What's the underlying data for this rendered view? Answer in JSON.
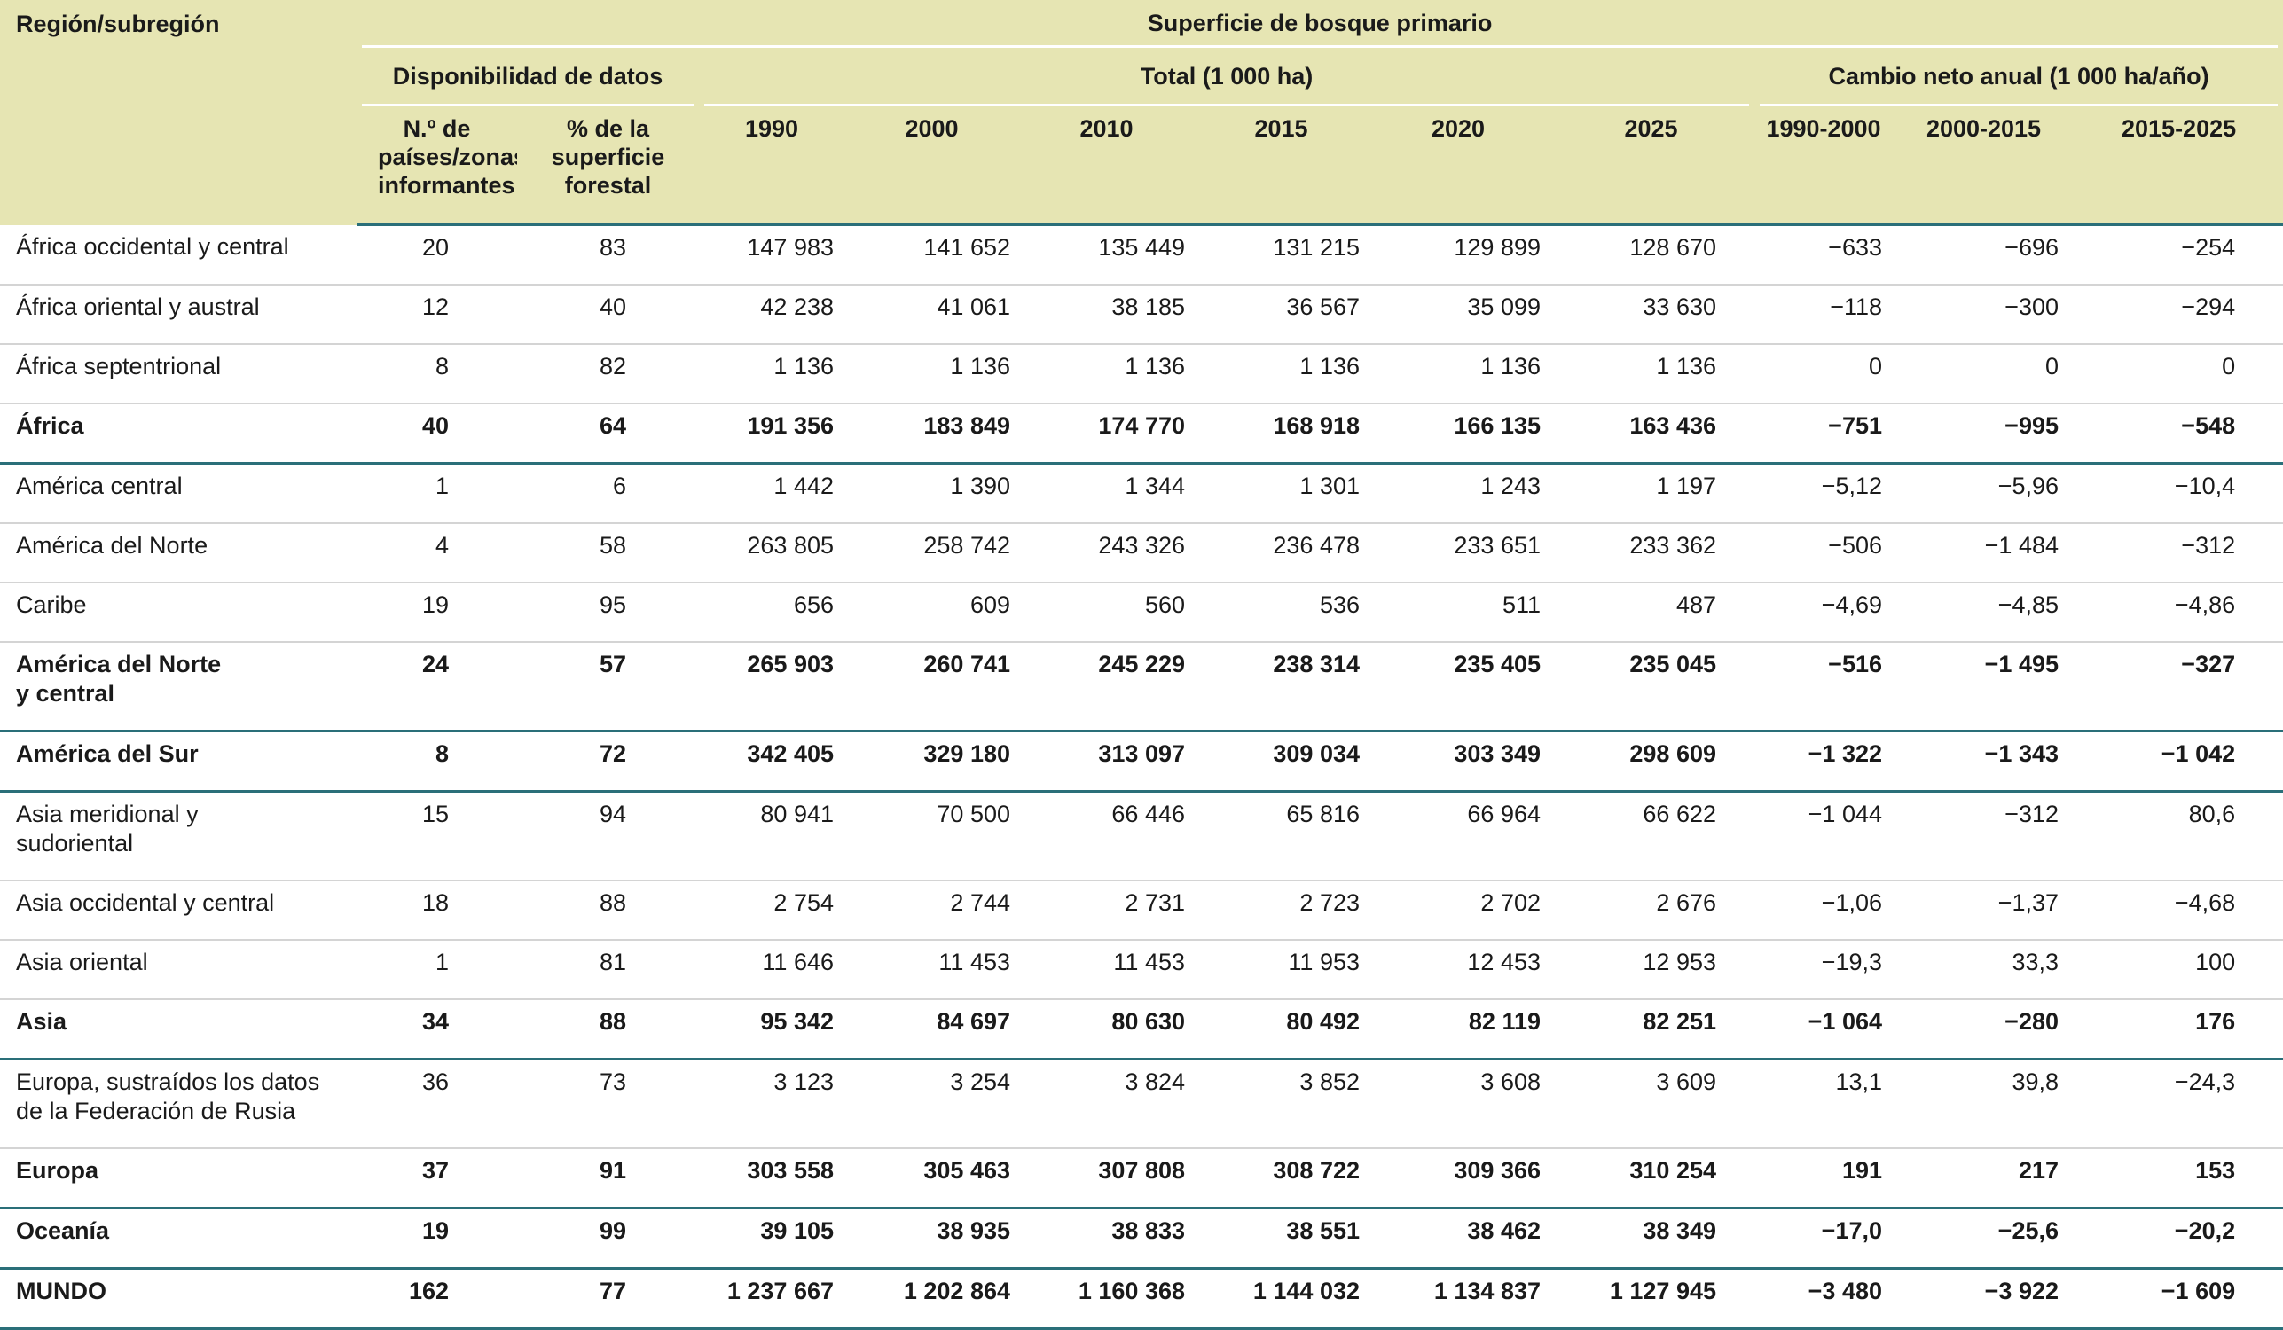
{
  "header": {
    "region": "Región/subregión",
    "title": "Superficie de bosque primario",
    "groups": [
      "Disponibilidad de datos",
      "Total (1 000 ha)",
      "Cambio neto anual (1 000 ha/año)"
    ],
    "columns": [
      "N.º de países/zonas informantes",
      "% de la superficie forestal",
      "1990",
      "2000",
      "2010",
      "2015",
      "2020",
      "2025",
      "1990-2000",
      "2000-2015",
      "2015-2025"
    ]
  },
  "rows": [
    {
      "label": "África occidental y central",
      "bold": false,
      "values": [
        "20",
        "83",
        "147 983",
        "141 652",
        "135 449",
        "131 215",
        "129 899",
        "128 670",
        "−633",
        "−696",
        "−254"
      ]
    },
    {
      "label": "África oriental y austral",
      "bold": false,
      "values": [
        "12",
        "40",
        "42 238",
        "41 061",
        "38 185",
        "36 567",
        "35 099",
        "33 630",
        "−118",
        "−300",
        "−294"
      ]
    },
    {
      "label": "África septentrional",
      "bold": false,
      "values": [
        "8",
        "82",
        "1 136",
        "1 136",
        "1 136",
        "1 136",
        "1 136",
        "1 136",
        "0",
        "0",
        "0"
      ]
    },
    {
      "label": "África",
      "bold": true,
      "values": [
        "40",
        "64",
        "191 356",
        "183 849",
        "174 770",
        "168 918",
        "166 135",
        "163 436",
        "−751",
        "−995",
        "−548"
      ]
    },
    {
      "label": "América central",
      "bold": false,
      "values": [
        "1",
        "6",
        "1 442",
        "1 390",
        "1 344",
        "1 301",
        "1 243",
        "1 197",
        "−5,12",
        "−5,96",
        "−10,4"
      ]
    },
    {
      "label": "América del Norte",
      "bold": false,
      "values": [
        "4",
        "58",
        "263 805",
        "258 742",
        "243 326",
        "236 478",
        "233 651",
        "233 362",
        "−506",
        "−1 484",
        "−312"
      ]
    },
    {
      "label": "Caribe",
      "bold": false,
      "values": [
        "19",
        "95",
        "656",
        "609",
        "560",
        "536",
        "511",
        "487",
        "−4,69",
        "−4,85",
        "−4,86"
      ]
    },
    {
      "label": "América del Norte\ny central",
      "bold": true,
      "values": [
        "24",
        "57",
        "265 903",
        "260 741",
        "245 229",
        "238 314",
        "235 405",
        "235 045",
        "−516",
        "−1 495",
        "−327"
      ]
    },
    {
      "label": "América del Sur",
      "bold": true,
      "values": [
        "8",
        "72",
        "342 405",
        "329 180",
        "313 097",
        "309 034",
        "303 349",
        "298 609",
        "−1 322",
        "−1 343",
        "−1 042"
      ]
    },
    {
      "label": "Asia meridional y\nsudoriental",
      "bold": false,
      "values": [
        "15",
        "94",
        "80 941",
        "70 500",
        "66 446",
        "65 816",
        "66 964",
        "66 622",
        "−1 044",
        "−312",
        "80,6"
      ]
    },
    {
      "label": "Asia occidental y central",
      "bold": false,
      "values": [
        "18",
        "88",
        "2 754",
        "2 744",
        "2 731",
        "2 723",
        "2 702",
        "2 676",
        "−1,06",
        "−1,37",
        "−4,68"
      ]
    },
    {
      "label": "Asia oriental",
      "bold": false,
      "values": [
        "1",
        "81",
        "11 646",
        "11 453",
        "11 453",
        "11 953",
        "12 453",
        "12 953",
        "−19,3",
        "33,3",
        "100"
      ]
    },
    {
      "label": "Asia",
      "bold": true,
      "values": [
        "34",
        "88",
        "95 342",
        "84 697",
        "80 630",
        "80 492",
        "82 119",
        "82 251",
        "−1 064",
        "−280",
        "176"
      ]
    },
    {
      "label": "Europa, sustraídos los datos\nde la Federación de Rusia",
      "bold": false,
      "values": [
        "36",
        "73",
        "3 123",
        "3 254",
        "3 824",
        "3 852",
        "3 608",
        "3 609",
        "13,1",
        "39,8",
        "−24,3"
      ]
    },
    {
      "label": "Europa",
      "bold": true,
      "values": [
        "37",
        "91",
        "303 558",
        "305 463",
        "307 808",
        "308 722",
        "309 366",
        "310 254",
        "191",
        "217",
        "153"
      ]
    },
    {
      "label": "Oceanía",
      "bold": true,
      "values": [
        "19",
        "99",
        "39 105",
        "38 935",
        "38 833",
        "38 551",
        "38 462",
        "38 349",
        "−17,0",
        "−25,6",
        "−20,2"
      ]
    },
    {
      "label": "MUNDO",
      "bold": true,
      "values": [
        "162",
        "77",
        "1 237 667",
        "1 202 864",
        "1 160 368",
        "1 144 032",
        "1 134 837",
        "1 127 945",
        "−3 480",
        "−3 922",
        "−1 609"
      ]
    }
  ]
}
